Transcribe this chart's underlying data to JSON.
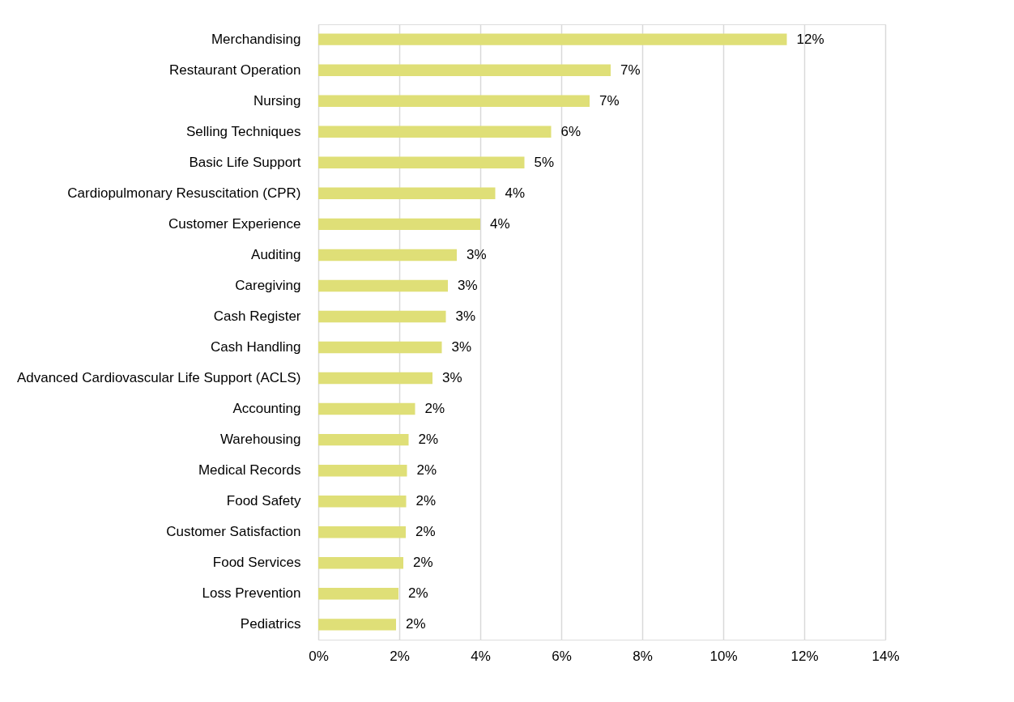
{
  "chart_data": {
    "type": "bar",
    "orientation": "horizontal",
    "categories": [
      "Merchandising",
      "Restaurant Operation",
      "Nursing",
      "Selling Techniques",
      "Basic Life Support",
      "Cardiopulmonary Resuscitation (CPR)",
      "Customer Experience",
      "Auditing",
      "Caregiving",
      "Cash Register",
      "Cash Handling",
      "Advanced Cardiovascular Life Support (ACLS)",
      "Accounting",
      "Warehousing",
      "Medical Records",
      "Food Safety",
      "Customer Satisfaction",
      "Food Services",
      "Loss Prevention",
      "Pediatrics"
    ],
    "values": [
      11.57,
      7.22,
      6.7,
      5.75,
      5.09,
      4.37,
      4.0,
      3.42,
      3.2,
      3.15,
      3.05,
      2.82,
      2.39,
      2.23,
      2.19,
      2.17,
      2.16,
      2.1,
      1.98,
      1.92
    ],
    "value_labels": [
      "12%",
      "7%",
      "7%",
      "6%",
      "5%",
      "4%",
      "4%",
      "3%",
      "3%",
      "3%",
      "3%",
      "3%",
      "2%",
      "2%",
      "2%",
      "2%",
      "2%",
      "2%",
      "2%",
      "2%"
    ],
    "color": "#dfdf77",
    "xlim": [
      0,
      14
    ],
    "xticks": [
      {
        "value": 0,
        "label": "0%"
      },
      {
        "value": 2,
        "label": "2%"
      },
      {
        "value": 4,
        "label": "4%"
      },
      {
        "value": 6,
        "label": "6%"
      },
      {
        "value": 8,
        "label": "8%"
      },
      {
        "value": 10,
        "label": "10%"
      },
      {
        "value": 12,
        "label": "12%"
      },
      {
        "value": 14,
        "label": "14%"
      }
    ],
    "grid": "x"
  }
}
